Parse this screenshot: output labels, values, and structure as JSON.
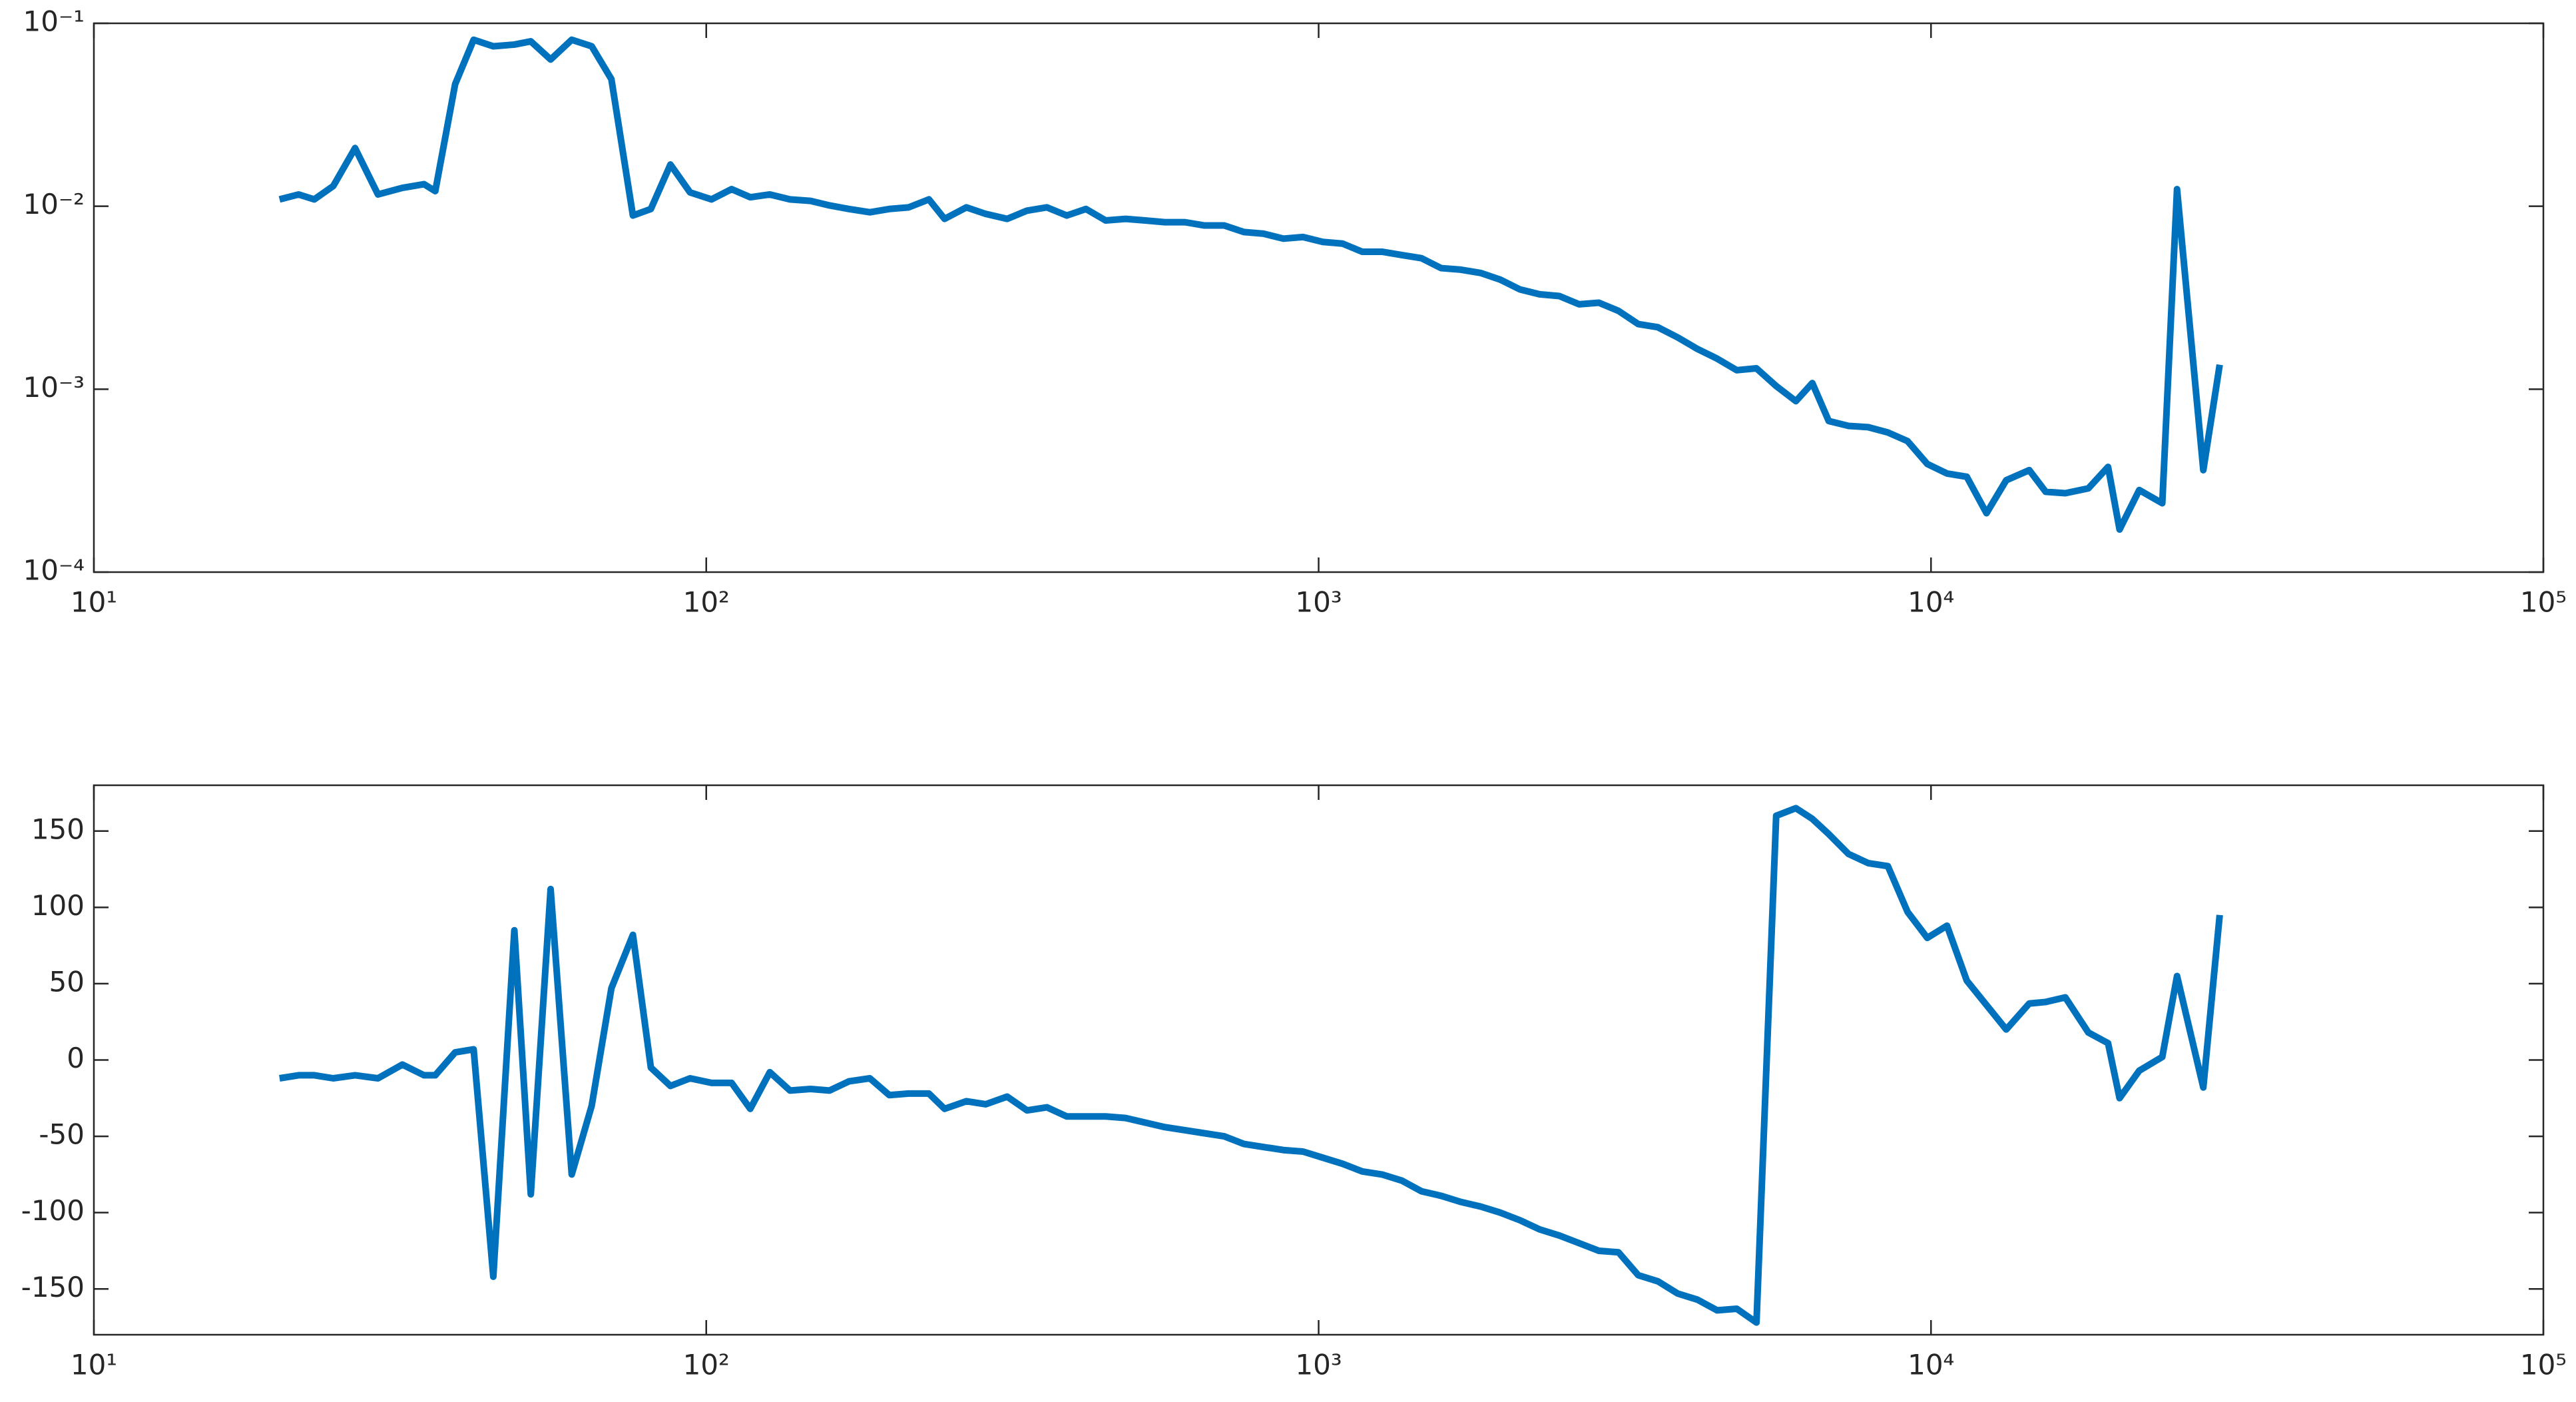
{
  "chart_data": [
    {
      "type": "line",
      "xscale": "log",
      "yscale": "log",
      "xlim": [
        10,
        100000
      ],
      "xticks": [
        {
          "value": 10,
          "label": "10¹"
        },
        {
          "value": 100,
          "label": "10²"
        },
        {
          "value": 1000,
          "label": "10³"
        },
        {
          "value": 10000,
          "label": "10⁴"
        },
        {
          "value": 100000,
          "label": "10⁵"
        }
      ],
      "ylim": [
        0.0001,
        0.1
      ],
      "yticks": [
        {
          "value": 0.0001,
          "label": "10⁻⁴"
        },
        {
          "value": 0.001,
          "label": "10⁻³"
        },
        {
          "value": 0.01,
          "label": "10⁻²"
        },
        {
          "value": 0.1,
          "label": "10⁻¹"
        }
      ],
      "x": [
        20.1,
        21.6,
        22.9,
        24.6,
        26.7,
        29.1,
        31.9,
        34.6,
        36.1,
        38.9,
        41.7,
        44.9,
        48.6,
        51.7,
        55.7,
        60.3,
        65,
        70,
        75.9,
        81.2,
        87.4,
        94.1,
        102,
        110,
        118,
        127,
        137,
        148,
        159,
        171,
        185,
        199,
        214,
        231,
        245,
        266,
        286,
        310,
        334,
        360,
        388,
        417,
        449,
        484,
        521,
        561,
        605,
        651,
        701,
        755,
        813,
        876,
        943,
        1016,
        1094,
        1178,
        1269,
        1367,
        1472,
        1585,
        1707,
        1838,
        1980,
        2132,
        2296,
        2472,
        2663,
        2868,
        3088,
        3326,
        3581,
        3857,
        4154,
        4473,
        4817,
        5188,
        5587,
        6017,
        6400,
        6808,
        7332,
        7896,
        8503,
        9157,
        9862,
        10620,
        11440,
        12320,
        13270,
        14470,
        15390,
        16570,
        18070,
        19460,
        20320,
        21880,
        23860,
        25220,
        27840,
        29610
      ],
      "series": [
        {
          "color": "#0072bd",
          "values": [
            0.0109,
            0.0116,
            0.0109,
            0.0129,
            0.0208,
            0.0116,
            0.0126,
            0.0132,
            0.0121,
            0.0465,
            0.0813,
            0.0749,
            0.0765,
            0.0797,
            0.0634,
            0.0813,
            0.0749,
            0.0495,
            0.0089,
            0.00966,
            0.0169,
            0.0119,
            0.0109,
            0.0124,
            0.0112,
            0.0116,
            0.0109,
            0.0107,
            0.0101,
            0.00966,
            0.00927,
            0.00966,
            0.00986,
            0.0109,
            0.00853,
            0.00986,
            0.00908,
            0.00853,
            0.00946,
            0.00986,
            0.0089,
            0.00966,
            0.00836,
            0.00853,
            0.00836,
            0.00818,
            0.00818,
            0.00785,
            0.00785,
            0.00723,
            0.00708,
            0.00665,
            0.00679,
            0.00638,
            0.00625,
            0.00564,
            0.00564,
            0.00541,
            0.0052,
            0.00459,
            0.0045,
            0.00432,
            0.00397,
            0.00351,
            0.0033,
            0.00323,
            0.00291,
            0.00297,
            0.00268,
            0.00227,
            0.00218,
            0.00192,
            0.00166,
            0.00147,
            0.00127,
            0.0013,
            0.00104,
            0.00086,
            0.00108,
            0.00067,
            0.00063,
            0.00062,
            0.00058,
            0.00052,
            0.00039,
            0.000346,
            0.000332,
            0.00021,
            0.000318,
            0.000361,
            0.000275,
            0.00027,
            0.000287,
            0.000376,
            0.000171,
            0.000281,
            0.000238,
            0.0124,
            0.000361,
            0.00136
          ]
        }
      ]
    },
    {
      "type": "line",
      "xscale": "log",
      "xlim": [
        10,
        100000
      ],
      "xticks": [
        {
          "value": 10,
          "label": "10¹"
        },
        {
          "value": 100,
          "label": "10²"
        },
        {
          "value": 1000,
          "label": "10³"
        },
        {
          "value": 10000,
          "label": "10⁴"
        },
        {
          "value": 100000,
          "label": "10⁵"
        }
      ],
      "ylim": [
        -180,
        180
      ],
      "yticks": [
        -150,
        -100,
        -50,
        0,
        50,
        100,
        150
      ],
      "x": [
        20.1,
        21.6,
        22.9,
        24.6,
        26.7,
        29.1,
        31.9,
        34.6,
        36.1,
        38.9,
        41.7,
        44.9,
        48.6,
        51.7,
        55.7,
        60.3,
        65,
        70,
        75.9,
        81.2,
        87.4,
        94.1,
        102,
        110,
        118,
        127,
        137,
        148,
        159,
        171,
        185,
        199,
        214,
        231,
        245,
        266,
        286,
        310,
        334,
        360,
        388,
        417,
        449,
        484,
        521,
        561,
        605,
        651,
        701,
        755,
        813,
        876,
        943,
        1016,
        1094,
        1178,
        1269,
        1367,
        1472,
        1585,
        1707,
        1838,
        1980,
        2132,
        2296,
        2472,
        2663,
        2868,
        3088,
        3326,
        3581,
        3857,
        4154,
        4473,
        4817,
        5188,
        5587,
        6017,
        6400,
        6808,
        7332,
        7896,
        8503,
        9157,
        9862,
        10620,
        11440,
        12320,
        13270,
        14470,
        15390,
        16570,
        18070,
        19460,
        20320,
        21880,
        23860,
        25220,
        27840,
        29610
      ],
      "series": [
        {
          "color": "#0072bd",
          "values": [
            -12,
            -10,
            -10,
            -12,
            -10,
            -12,
            -3,
            -10,
            -10,
            5,
            7,
            -142,
            85,
            -88,
            112,
            -75,
            -30,
            47,
            82,
            -5,
            -17,
            -12,
            -15,
            -15,
            -32,
            -8,
            -20,
            -19,
            -20,
            -14,
            -12,
            -23,
            -22,
            -22,
            -32,
            -27,
            -29,
            -24,
            -33,
            -31,
            -37,
            -37,
            -37,
            -38,
            -41,
            -44,
            -46,
            -48,
            -50,
            -55,
            -57,
            -59,
            -60,
            -64,
            -68,
            -73,
            -75,
            -79,
            -86,
            -89,
            -93,
            -96,
            -100,
            -105,
            -111,
            -115,
            -120,
            -125,
            -126,
            -141,
            -145,
            -153,
            -157,
            -164,
            -163,
            -172,
            160,
            165,
            158,
            148,
            135,
            129,
            127,
            97,
            80,
            88,
            52,
            36,
            20,
            37,
            38,
            41,
            18,
            11,
            -25,
            -7,
            2,
            55,
            -18,
            95
          ]
        }
      ]
    }
  ]
}
